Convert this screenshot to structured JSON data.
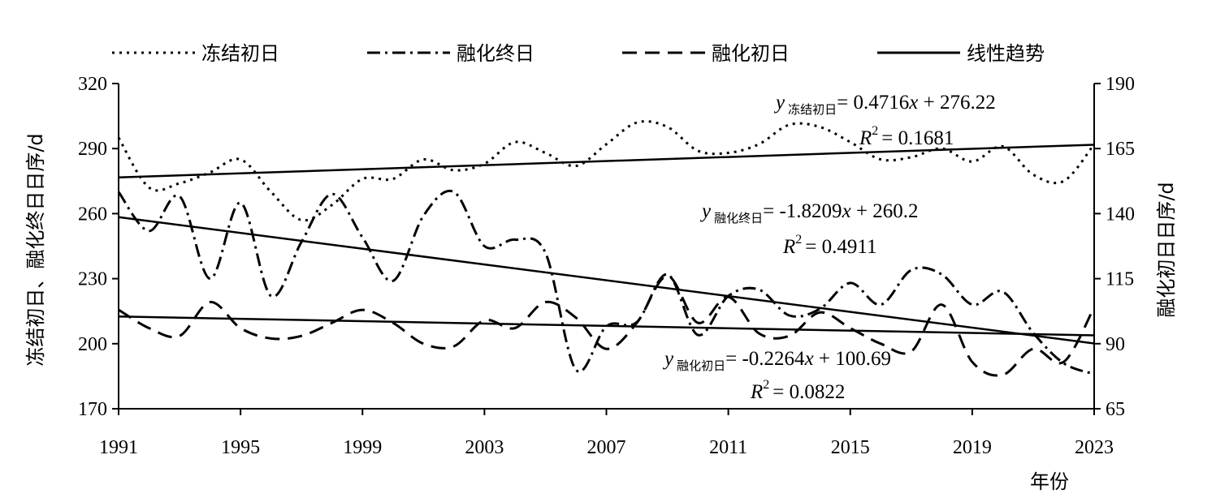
{
  "chart_data": {
    "type": "line",
    "legend": {
      "placement": "top",
      "entries": [
        {
          "label": "冻结初日",
          "style": "dotted"
        },
        {
          "label": "融化终日",
          "style": "dash-dot"
        },
        {
          "label": "融化初日",
          "style": "dashed"
        },
        {
          "label": "线性趋势",
          "style": "solid"
        }
      ]
    },
    "xlabel": "年份",
    "ylabel_left": "冻结初日、融化终日日序/d",
    "ylabel_right": "融化初日日序/d",
    "x_ticks": [
      "1991",
      "1995",
      "1999",
      "2003",
      "2007",
      "2011",
      "2015",
      "2019",
      "2023"
    ],
    "y_left_ticks": [
      "170",
      "200",
      "230",
      "260",
      "290",
      "320"
    ],
    "y_right_ticks": [
      "65",
      "90",
      "115",
      "140",
      "165",
      "190"
    ],
    "y_left_range": [
      170,
      320
    ],
    "y_right_range": [
      65,
      190
    ],
    "x_range": [
      1991,
      2023
    ],
    "grid": false,
    "series": [
      {
        "name": "冻结初日",
        "axis": "left",
        "x": [
          1991,
          1992,
          1993,
          1994,
          1995,
          1996,
          1997,
          1998,
          1999,
          2000,
          2001,
          2002,
          2003,
          2004,
          2005,
          2006,
          2007,
          2008,
          2009,
          2010,
          2011,
          2012,
          2013,
          2014,
          2015,
          2016,
          2017,
          2018,
          2019,
          2020,
          2021,
          2022,
          2023
        ],
        "values": [
          295,
          272,
          274,
          279,
          285,
          270,
          257,
          264,
          276,
          276,
          285,
          280,
          283,
          293,
          288,
          282,
          292,
          302,
          300,
          289,
          288,
          292,
          301,
          300,
          293,
          285,
          286,
          290,
          284,
          291,
          278,
          275,
          292
        ]
      },
      {
        "name": "融化终日",
        "axis": "left",
        "x": [
          1991,
          1992,
          1993,
          1994,
          1995,
          1996,
          1997,
          1998,
          1999,
          2000,
          2001,
          2002,
          2003,
          2004,
          2005,
          2006,
          2007,
          2008,
          2009,
          2010,
          2011,
          2012,
          2013,
          2014,
          2015,
          2016,
          2017,
          2018,
          2019,
          2020,
          2021,
          2022,
          2023
        ],
        "values": [
          270,
          252,
          268,
          230,
          265,
          222,
          247,
          269,
          249,
          229,
          259,
          270,
          245,
          248,
          242,
          188,
          208,
          210,
          232,
          204,
          222,
          225,
          213,
          216,
          228,
          218,
          234,
          232,
          218,
          224,
          205,
          191,
          186
        ]
      },
      {
        "name": "融化初日",
        "axis": "right",
        "x": [
          1991,
          1992,
          1993,
          1994,
          1995,
          1996,
          1997,
          1998,
          1999,
          2000,
          2001,
          2002,
          2003,
          2004,
          2005,
          2006,
          2007,
          2008,
          2009,
          2010,
          2011,
          2012,
          2013,
          2014,
          2015,
          2016,
          2017,
          2018,
          2019,
          2020,
          2021,
          2022,
          2023
        ],
        "values": [
          103,
          96,
          93,
          106,
          96,
          92,
          93,
          98,
          103,
          98,
          90,
          89,
          99,
          96,
          106,
          100,
          88,
          98,
          116,
          98,
          108,
          94,
          93,
          102,
          96,
          90,
          87,
          105,
          83,
          78,
          88,
          83,
          104
        ]
      }
    ],
    "trendlines": [
      {
        "axis": "left",
        "x": [
          1991,
          2023
        ],
        "values": [
          276.69,
          291.78
        ]
      },
      {
        "axis": "left",
        "x": [
          1991,
          2023
        ],
        "values": [
          258.38,
          200.11
        ]
      },
      {
        "axis": "right",
        "x": [
          1991,
          2023
        ],
        "values": [
          100.46,
          93.22
        ]
      }
    ],
    "annotations": [
      {
        "y": "y",
        "sub": "冻结初日",
        "rest": "= 0.4716",
        "x": "x",
        "tail": " + 276.22",
        "r2": "= 0.1681"
      },
      {
        "y": "y",
        "sub": "融化终日",
        "rest": "= -1.8209",
        "x": "x",
        "tail": " + 260.2",
        "r2": "= 0.4911"
      },
      {
        "y": "y",
        "sub": "融化初日",
        "rest": "= -0.2264",
        "x": "x",
        "tail": " + 100.69",
        "r2": "= 0.0822"
      }
    ],
    "r_symbol": "R",
    "r_exp": "2"
  }
}
